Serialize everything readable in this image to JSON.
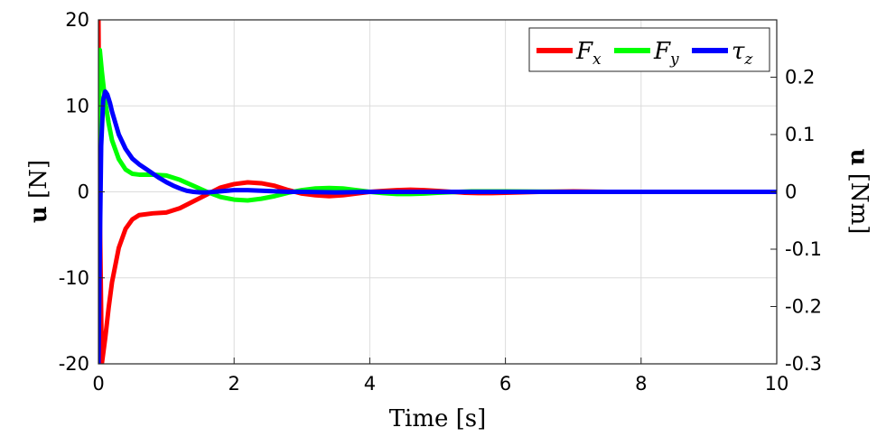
{
  "chart_data": {
    "type": "line",
    "xlabel": "Time [s]",
    "ylabel_left": {
      "bold": "u",
      "rest": " [N]"
    },
    "ylabel_right": {
      "bold": "u",
      "rest": " [Nm]"
    },
    "xlim": [
      0,
      10
    ],
    "ylim_left": [
      -20,
      20
    ],
    "ylim_right": [
      -0.3,
      0.3
    ],
    "x_ticks": [
      0,
      2,
      4,
      6,
      8,
      10
    ],
    "x_tick_labels": [
      "0",
      "2",
      "4",
      "6",
      "8",
      "10"
    ],
    "y_ticks_left": [
      -20,
      -10,
      0,
      10,
      20
    ],
    "y_tick_labels_left": [
      "-20",
      "-10",
      "0",
      "10",
      "20"
    ],
    "y_ticks_right": [
      -0.3,
      -0.2,
      -0.1,
      0,
      0.1,
      0.2
    ],
    "y_tick_labels_right": [
      "-0.3",
      "-0.2",
      "-0.1",
      "0",
      "0.1",
      "0.2"
    ],
    "grid": true,
    "legend_position": "top-right",
    "series": [
      {
        "name": "F_x",
        "label_main": "F",
        "label_sub": "x",
        "axis": "left",
        "color": "#ff0000",
        "x": [
          0,
          0.02,
          0.05,
          0.1,
          0.15,
          0.2,
          0.3,
          0.4,
          0.5,
          0.6,
          0.8,
          1.0,
          1.2,
          1.4,
          1.6,
          1.8,
          2.0,
          2.2,
          2.4,
          2.6,
          2.8,
          3.0,
          3.2,
          3.4,
          3.6,
          3.8,
          4.0,
          4.2,
          4.4,
          4.6,
          4.8,
          5.0,
          5.2,
          5.4,
          5.6,
          5.8,
          6.0,
          6.5,
          7.0,
          7.5,
          8.0,
          9.0,
          10.0
        ],
        "y": [
          20,
          -2,
          -20,
          -17,
          -13.5,
          -10.5,
          -6.5,
          -4.3,
          -3.2,
          -2.7,
          -2.5,
          -2.4,
          -1.9,
          -1.1,
          -0.3,
          0.5,
          0.9,
          1.1,
          1.0,
          0.7,
          0.2,
          -0.2,
          -0.4,
          -0.5,
          -0.4,
          -0.2,
          0.0,
          0.1,
          0.2,
          0.25,
          0.2,
          0.1,
          0.0,
          -0.1,
          -0.15,
          -0.15,
          -0.1,
          0.0,
          0.05,
          0.0,
          0.0,
          0.0,
          0.0
        ]
      },
      {
        "name": "F_y",
        "label_main": "F",
        "label_sub": "y",
        "axis": "left",
        "color": "#00ff00",
        "x": [
          0,
          0.02,
          0.05,
          0.1,
          0.15,
          0.2,
          0.3,
          0.4,
          0.5,
          0.6,
          0.7,
          0.8,
          1.0,
          1.2,
          1.4,
          1.6,
          1.8,
          2.0,
          2.2,
          2.4,
          2.6,
          2.8,
          3.0,
          3.2,
          3.4,
          3.6,
          3.8,
          4.0,
          4.2,
          4.4,
          4.6,
          4.8,
          5.0,
          5.5,
          6.0,
          7.0,
          8.0,
          10.0
        ],
        "y": [
          0,
          16.5,
          14,
          10.5,
          8,
          6,
          3.8,
          2.6,
          2.1,
          2.0,
          2.0,
          2.0,
          1.9,
          1.4,
          0.7,
          0.0,
          -0.6,
          -0.9,
          -1.0,
          -0.8,
          -0.5,
          -0.1,
          0.2,
          0.4,
          0.45,
          0.4,
          0.2,
          0.0,
          -0.15,
          -0.25,
          -0.25,
          -0.2,
          -0.1,
          0.05,
          0.05,
          0.0,
          0.0,
          0.0
        ]
      },
      {
        "name": "τ_z",
        "label_main": "τ",
        "label_sub": "z",
        "axis": "right",
        "color": "#0000ff",
        "x": [
          0,
          0.02,
          0.04,
          0.07,
          0.1,
          0.13,
          0.17,
          0.2,
          0.25,
          0.3,
          0.4,
          0.5,
          0.6,
          0.7,
          0.8,
          0.9,
          1.0,
          1.1,
          1.2,
          1.3,
          1.4,
          1.5,
          1.6,
          1.8,
          2.0,
          2.2,
          2.4,
          2.6,
          2.8,
          3.0,
          3.5,
          4.0,
          5.0,
          6.0,
          8.0,
          10.0
        ],
        "y": [
          -0.3,
          -0.1,
          0.08,
          0.16,
          0.175,
          0.17,
          0.155,
          0.14,
          0.12,
          0.1,
          0.075,
          0.058,
          0.048,
          0.04,
          0.032,
          0.024,
          0.017,
          0.011,
          0.006,
          0.002,
          0.0,
          -0.001,
          -0.001,
          0.001,
          0.003,
          0.003,
          0.002,
          0.001,
          0.0,
          0.0,
          -0.001,
          0.0,
          0.0,
          0.0,
          0.0,
          0.0
        ]
      }
    ]
  }
}
